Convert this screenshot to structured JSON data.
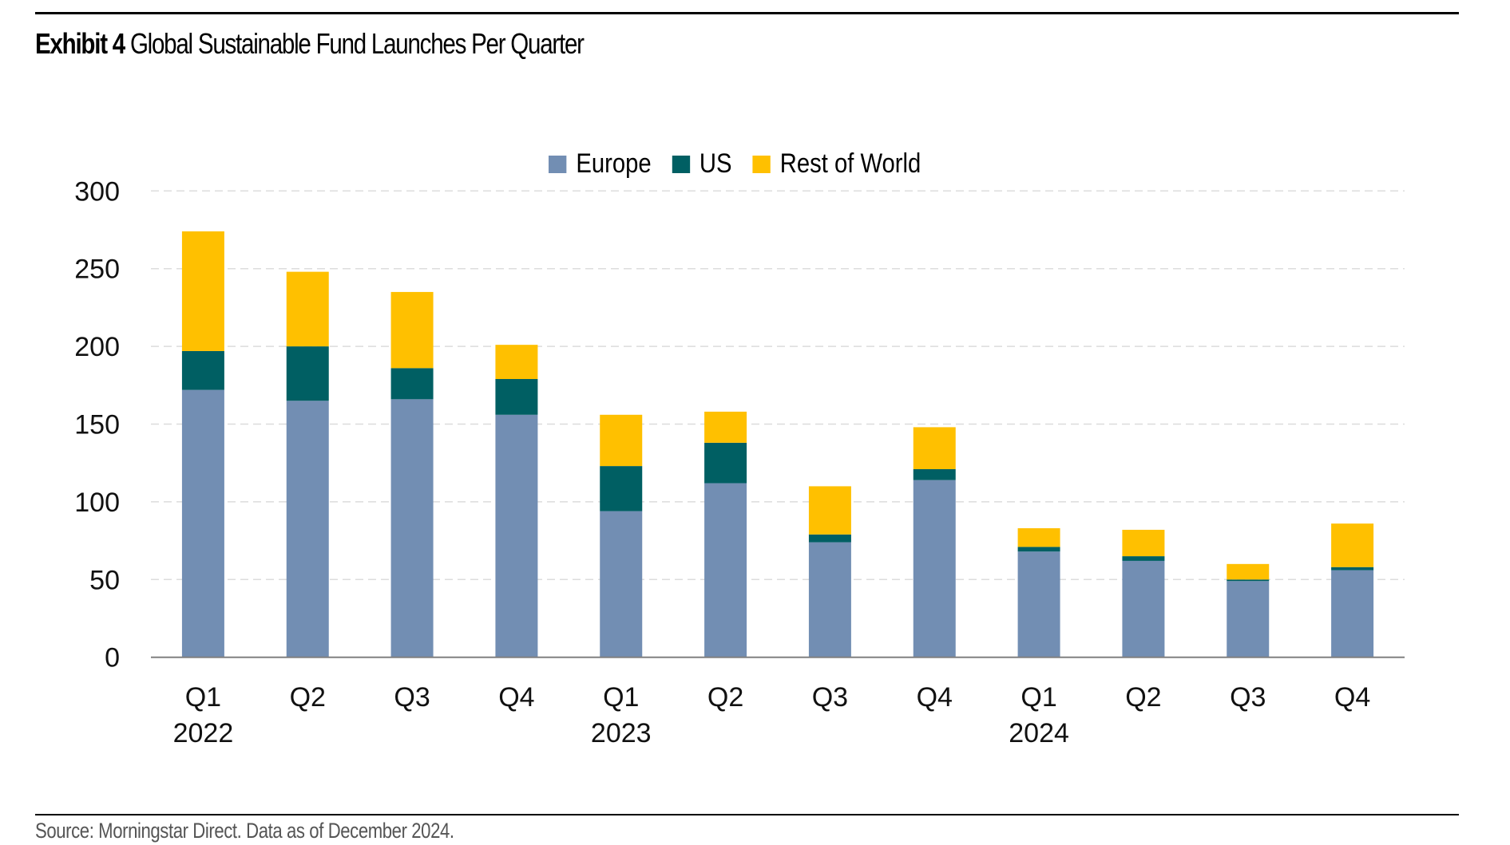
{
  "header": {
    "exhibit_label": "Exhibit 4",
    "title": "Global Sustainable Fund Launches Per Quarter"
  },
  "footer": {
    "source": "Source: Morningstar Direct. Data as of December 2024."
  },
  "legend": [
    {
      "name": "Europe",
      "color": "#728EB3"
    },
    {
      "name": "US",
      "color": "#005F63"
    },
    {
      "name": "Rest of World",
      "color": "#FFC000"
    }
  ],
  "chart_data": {
    "type": "bar",
    "stacked": true,
    "title": "Global Sustainable Fund Launches Per Quarter",
    "xlabel": "",
    "ylabel": "",
    "ylim": [
      0,
      300
    ],
    "yticks": [
      0,
      50,
      100,
      150,
      200,
      250,
      300
    ],
    "grid": true,
    "legend_position": "top-center",
    "categories": [
      "Q1 2022",
      "Q2 2022",
      "Q3 2022",
      "Q4 2022",
      "Q1 2023",
      "Q2 2023",
      "Q3 2023",
      "Q4 2023",
      "Q1 2024",
      "Q2 2024",
      "Q3 2024",
      "Q4 2024"
    ],
    "tick_labels": [
      {
        "quarter": "Q1",
        "year": "2022"
      },
      {
        "quarter": "Q2",
        "year": ""
      },
      {
        "quarter": "Q3",
        "year": ""
      },
      {
        "quarter": "Q4",
        "year": ""
      },
      {
        "quarter": "Q1",
        "year": "2023"
      },
      {
        "quarter": "Q2",
        "year": ""
      },
      {
        "quarter": "Q3",
        "year": ""
      },
      {
        "quarter": "Q4",
        "year": ""
      },
      {
        "quarter": "Q1",
        "year": "2024"
      },
      {
        "quarter": "Q2",
        "year": ""
      },
      {
        "quarter": "Q3",
        "year": ""
      },
      {
        "quarter": "Q4",
        "year": ""
      }
    ],
    "series": [
      {
        "name": "Europe",
        "color": "#728EB3",
        "values": [
          172,
          165,
          166,
          156,
          94,
          112,
          74,
          114,
          68,
          62,
          49,
          56
        ]
      },
      {
        "name": "US",
        "color": "#005F63",
        "values": [
          25,
          35,
          20,
          23,
          29,
          26,
          5,
          7,
          3,
          3,
          1,
          2
        ]
      },
      {
        "name": "Rest of World",
        "color": "#FFC000",
        "values": [
          77,
          48,
          49,
          22,
          33,
          20,
          31,
          27,
          12,
          17,
          10,
          28
        ]
      }
    ]
  }
}
